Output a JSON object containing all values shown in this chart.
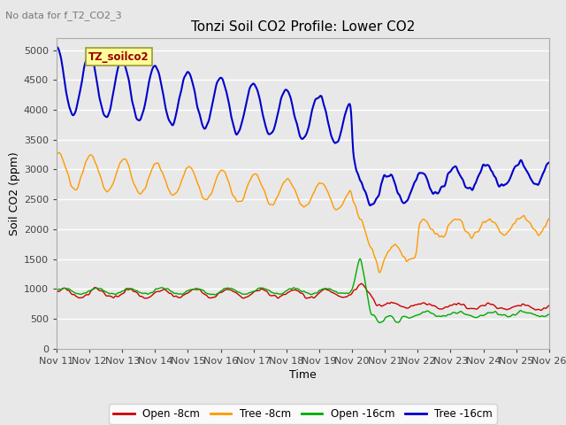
{
  "title": "Tonzi Soil CO2 Profile: Lower CO2",
  "subtitle": "No data for f_T2_CO2_3",
  "xlabel": "Time",
  "ylabel": "Soil CO2 (ppm)",
  "annotation": "TZ_soilco2",
  "ylim": [
    0,
    5200
  ],
  "yticks": [
    0,
    500,
    1000,
    1500,
    2000,
    2500,
    3000,
    3500,
    4000,
    4500,
    5000
  ],
  "xtick_labels": [
    "Nov 11",
    "Nov 12",
    "Nov 13",
    "Nov 14",
    "Nov 15",
    "Nov 16",
    "Nov 17",
    "Nov 18",
    "Nov 19",
    "Nov 20",
    "Nov 21",
    "Nov 22",
    "Nov 23",
    "Nov 24",
    "Nov 25",
    "Nov 26"
  ],
  "legend": [
    "Open -8cm",
    "Tree -8cm",
    "Open -16cm",
    "Tree -16cm"
  ],
  "legend_colors": [
    "#cc0000",
    "#ff9900",
    "#00aa00",
    "#0000cc"
  ],
  "background_color": "#e8e8e8",
  "figsize": [
    6.4,
    4.8
  ],
  "dpi": 100
}
